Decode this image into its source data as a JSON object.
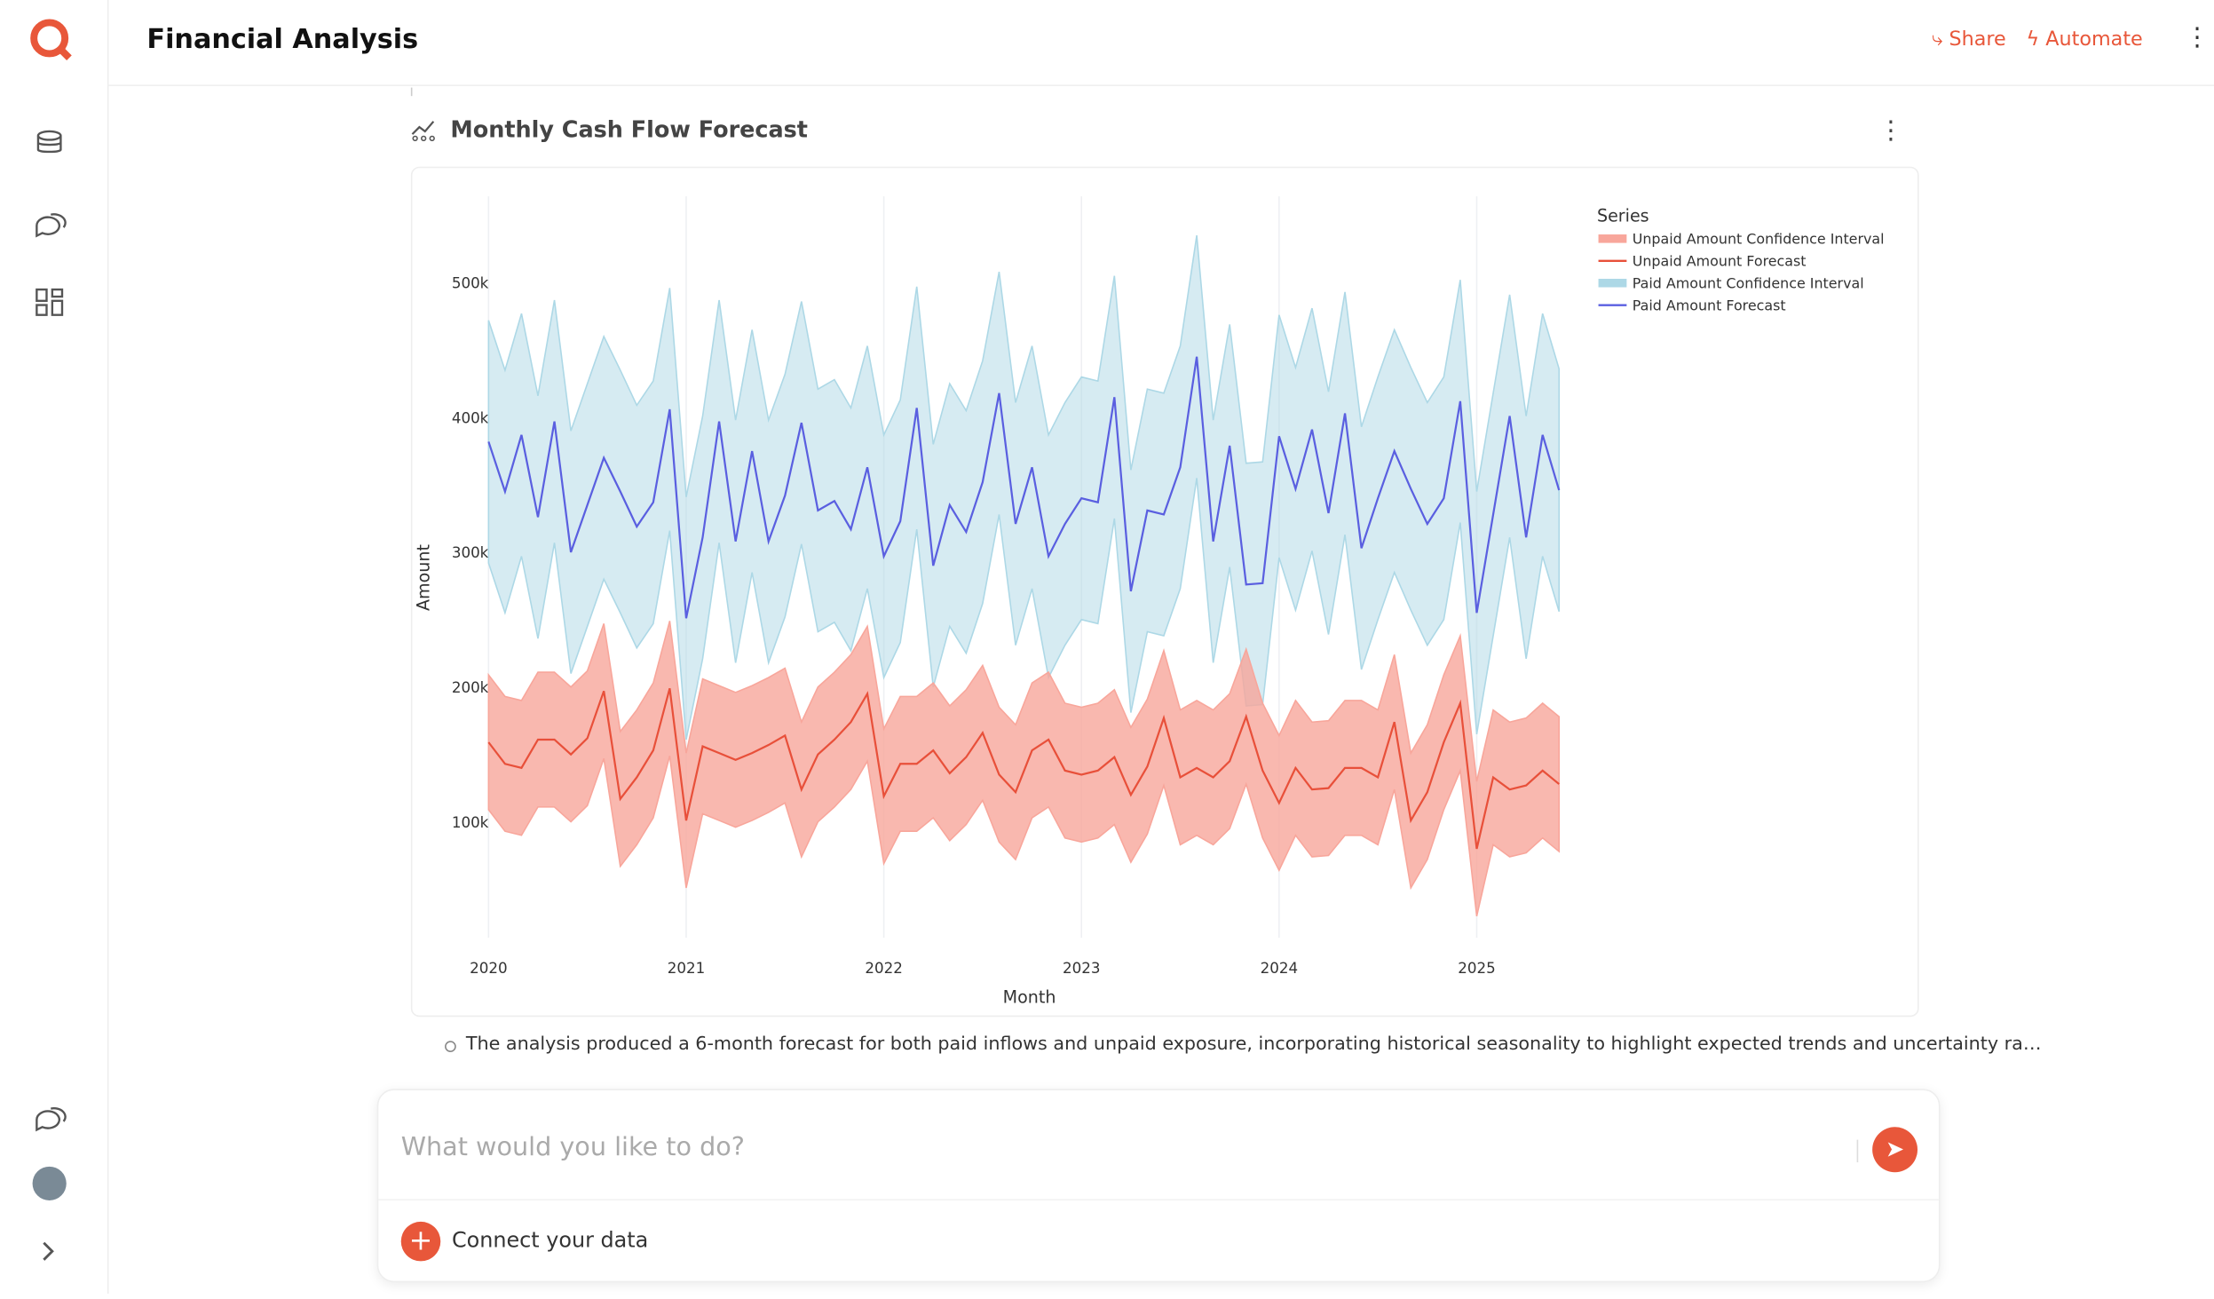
{
  "app": {
    "title": "Financial Analysis",
    "share": "Share",
    "automate": "Automate"
  },
  "card": {
    "title": "Monthly Cash Flow Forecast"
  },
  "summary": "The analysis produced a 6-month forecast for both paid inflows and unpaid exposure, incorporating historical seasonality to highlight expected trends and uncertainty ra…",
  "input": {
    "placeholder": "What would you like to do?",
    "connect": "Connect your data"
  },
  "chart_data": {
    "type": "line",
    "xlabel": "Month",
    "ylabel": "Amount",
    "legend_title": "Series",
    "legend": "top-right",
    "grid": true,
    "xlim": [
      2019.9,
      2025.58
    ],
    "xticks": [
      2020,
      2021,
      2022,
      2023,
      2024,
      2025
    ],
    "ylim": [
      15000,
      565000
    ],
    "yticks": [
      {
        "value": 100000,
        "label": "100k"
      },
      {
        "value": 200000,
        "label": "200k"
      },
      {
        "value": 300000,
        "label": "300k"
      },
      {
        "value": 400000,
        "label": "400k"
      },
      {
        "value": 500000,
        "label": "500k"
      }
    ],
    "x": [
      "2020-01",
      "2020-02",
      "2020-03",
      "2020-04",
      "2020-05",
      "2020-06",
      "2020-07",
      "2020-08",
      "2020-09",
      "2020-10",
      "2020-11",
      "2020-12",
      "2021-01",
      "2021-02",
      "2021-03",
      "2021-04",
      "2021-05",
      "2021-06",
      "2021-07",
      "2021-08",
      "2021-09",
      "2021-10",
      "2021-11",
      "2021-12",
      "2022-01",
      "2022-02",
      "2022-03",
      "2022-04",
      "2022-05",
      "2022-06",
      "2022-07",
      "2022-08",
      "2022-09",
      "2022-10",
      "2022-11",
      "2022-12",
      "2023-01",
      "2023-02",
      "2023-03",
      "2023-04",
      "2023-05",
      "2023-06",
      "2023-07",
      "2023-08",
      "2023-09",
      "2023-10",
      "2023-11",
      "2023-12",
      "2024-01",
      "2024-02",
      "2024-03",
      "2024-04",
      "2024-05",
      "2024-06",
      "2024-07",
      "2024-08",
      "2024-09",
      "2024-10",
      "2024-11",
      "2024-12",
      "2025-01",
      "2025-02",
      "2025-03",
      "2025-04",
      "2025-05",
      "2025-06"
    ],
    "series": [
      {
        "name": "Unpaid Amount Confidence Interval",
        "color": "#f8a69b",
        "kind": "band",
        "upper": [
          210000,
          194000,
          191000,
          212000,
          212000,
          201000,
          213000,
          248000,
          168000,
          184000,
          204000,
          250000,
          152000,
          207000,
          202000,
          197000,
          202000,
          208000,
          215000,
          175000,
          201000,
          212000,
          225000,
          246000,
          170000,
          194000,
          194000,
          204000,
          187000,
          199000,
          217000,
          186000,
          173000,
          204000,
          212000,
          189000,
          186000,
          189000,
          199000,
          171000,
          192000,
          228000,
          184000,
          191000,
          184000,
          196000,
          229000,
          189000,
          165000,
          191000,
          175000,
          176000,
          191000,
          191000,
          184000,
          225000,
          152000,
          173000,
          210000,
          239000,
          131000,
          184000,
          175000,
          178000,
          189000,
          179000
        ],
        "lower": [
          110000,
          94000,
          91000,
          112000,
          112000,
          101000,
          113000,
          148000,
          68000,
          84000,
          104000,
          150000,
          52000,
          107000,
          102000,
          97000,
          102000,
          108000,
          115000,
          75000,
          101000,
          112000,
          125000,
          146000,
          70000,
          94000,
          94000,
          104000,
          87000,
          99000,
          117000,
          86000,
          73000,
          104000,
          112000,
          89000,
          86000,
          89000,
          99000,
          71000,
          92000,
          128000,
          84000,
          91000,
          84000,
          96000,
          129000,
          89000,
          65000,
          91000,
          75000,
          76000,
          91000,
          91000,
          84000,
          125000,
          52000,
          73000,
          110000,
          139000,
          31000,
          84000,
          75000,
          78000,
          89000,
          79000
        ]
      },
      {
        "name": "Unpaid Amount Forecast",
        "color": "#e8503a",
        "kind": "line",
        "values": [
          160000,
          144000,
          141000,
          162000,
          162000,
          151000,
          163000,
          198000,
          118000,
          134000,
          154000,
          200000,
          102000,
          157000,
          152000,
          147000,
          152000,
          158000,
          165000,
          125000,
          151000,
          162000,
          175000,
          196000,
          120000,
          144000,
          144000,
          154000,
          137000,
          149000,
          167000,
          136000,
          123000,
          154000,
          162000,
          139000,
          136000,
          139000,
          149000,
          121000,
          142000,
          178000,
          134000,
          141000,
          134000,
          146000,
          179000,
          139000,
          115000,
          141000,
          125000,
          126000,
          141000,
          141000,
          134000,
          175000,
          102000,
          123000,
          160000,
          189000,
          81000,
          134000,
          125000,
          128000,
          139000,
          129000
        ]
      },
      {
        "name": "Paid Amount Confidence Interval",
        "color": "#add8e6",
        "kind": "band",
        "upper": [
          473000,
          436000,
          478000,
          417000,
          488000,
          391000,
          426000,
          461000,
          436000,
          410000,
          428000,
          497000,
          342000,
          402000,
          488000,
          399000,
          466000,
          399000,
          433000,
          487000,
          422000,
          429000,
          408000,
          454000,
          388000,
          414000,
          498000,
          381000,
          426000,
          406000,
          443000,
          509000,
          412000,
          454000,
          388000,
          412000,
          431000,
          428000,
          506000,
          362000,
          422000,
          419000,
          454000,
          536000,
          399000,
          470000,
          367000,
          368000,
          477000,
          438000,
          482000,
          420000,
          494000,
          394000,
          431000,
          466000,
          438000,
          412000,
          431000,
          503000,
          346000,
          419000,
          492000,
          402000,
          478000,
          437000
        ],
        "lower": [
          293000,
          256000,
          298000,
          237000,
          308000,
          211000,
          246000,
          281000,
          256000,
          230000,
          248000,
          317000,
          162000,
          222000,
          308000,
          219000,
          286000,
          219000,
          253000,
          307000,
          242000,
          249000,
          228000,
          274000,
          208000,
          234000,
          318000,
          201000,
          246000,
          226000,
          263000,
          329000,
          232000,
          274000,
          208000,
          232000,
          251000,
          248000,
          326000,
          182000,
          242000,
          239000,
          274000,
          356000,
          219000,
          290000,
          187000,
          188000,
          297000,
          258000,
          302000,
          240000,
          314000,
          214000,
          251000,
          286000,
          258000,
          232000,
          251000,
          323000,
          166000,
          239000,
          312000,
          222000,
          298000,
          257000
        ]
      },
      {
        "name": "Paid Amount Forecast",
        "color": "#5a5fe0",
        "kind": "line",
        "values": [
          383000,
          346000,
          388000,
          327000,
          398000,
          301000,
          336000,
          371000,
          346000,
          320000,
          338000,
          407000,
          252000,
          312000,
          398000,
          309000,
          376000,
          309000,
          343000,
          397000,
          332000,
          339000,
          318000,
          364000,
          298000,
          324000,
          408000,
          291000,
          336000,
          316000,
          353000,
          419000,
          322000,
          364000,
          298000,
          322000,
          341000,
          338000,
          416000,
          272000,
          332000,
          329000,
          364000,
          446000,
          309000,
          380000,
          277000,
          278000,
          387000,
          348000,
          392000,
          330000,
          404000,
          304000,
          341000,
          376000,
          348000,
          322000,
          341000,
          413000,
          256000,
          329000,
          402000,
          312000,
          388000,
          347000
        ]
      }
    ]
  }
}
